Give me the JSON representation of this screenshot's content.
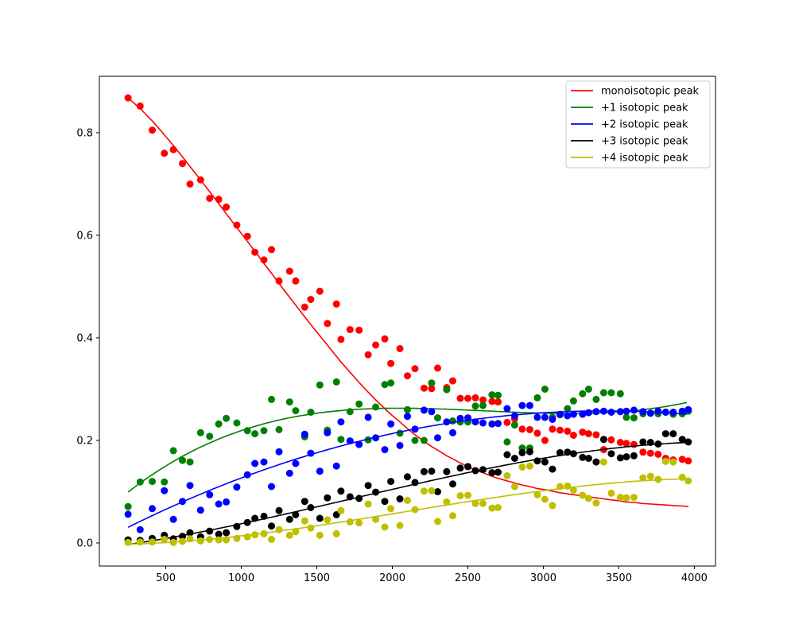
{
  "chart_data": {
    "type": "scatter",
    "title": "",
    "xlabel": "",
    "ylabel": "",
    "xlim": [
      60,
      4140
    ],
    "ylim": [
      -0.045,
      0.91
    ],
    "xticks": [
      500,
      1000,
      1500,
      2000,
      2500,
      3000,
      3500,
      4000
    ],
    "yticks": [
      0.0,
      0.2,
      0.4,
      0.6,
      0.8
    ],
    "xtick_labels": [
      "500",
      "1000",
      "1500",
      "2000",
      "2500",
      "3000",
      "3500",
      "4000"
    ],
    "ytick_labels": [
      "0.0",
      "0.2",
      "0.4",
      "0.6",
      "0.8"
    ],
    "grid": false,
    "legend_position": "top-right",
    "x": [
      250,
      330,
      410,
      490,
      550,
      610,
      660,
      730,
      790,
      850,
      900,
      970,
      1040,
      1090,
      1150,
      1200,
      1250,
      1320,
      1360,
      1420,
      1460,
      1520,
      1570,
      1630,
      1660,
      1720,
      1780,
      1840,
      1890,
      1950,
      1990,
      2050,
      2100,
      2150,
      2210,
      2260,
      2300,
      2360,
      2400,
      2450,
      2500,
      2550,
      2600,
      2660,
      2700,
      2760,
      2810,
      2860,
      2910,
      2960,
      3010,
      3060,
      3110,
      3160,
      3200,
      3260,
      3300,
      3350,
      3400,
      3450,
      3510,
      3550,
      3600,
      3660,
      3710,
      3760,
      3810,
      3860,
      3920,
      3960
    ],
    "series": [
      {
        "name": "monoisotopic peak",
        "color": "#ff0000",
        "fit": [
          0.868,
          0.847,
          0.823,
          0.796,
          0.775,
          0.753,
          0.734,
          0.708,
          0.685,
          0.662,
          0.642,
          0.615,
          0.588,
          0.569,
          0.545,
          0.526,
          0.506,
          0.479,
          0.464,
          0.441,
          0.426,
          0.404,
          0.386,
          0.364,
          0.353,
          0.333,
          0.313,
          0.294,
          0.279,
          0.262,
          0.251,
          0.236,
          0.223,
          0.211,
          0.198,
          0.188,
          0.181,
          0.17,
          0.164,
          0.156,
          0.149,
          0.142,
          0.137,
          0.13,
          0.126,
          0.121,
          0.117,
          0.113,
          0.11,
          0.106,
          0.104,
          0.101,
          0.098,
          0.096,
          0.094,
          0.092,
          0.09,
          0.088,
          0.086,
          0.084,
          0.082,
          0.08,
          0.079,
          0.077,
          0.076,
          0.075,
          0.074,
          0.073,
          0.072,
          0.071
        ],
        "values": [
          0.868,
          0.852,
          0.805,
          0.76,
          0.767,
          0.74,
          0.7,
          0.708,
          0.672,
          0.67,
          0.655,
          0.62,
          0.598,
          0.567,
          0.552,
          0.572,
          0.511,
          0.53,
          0.511,
          0.46,
          0.475,
          0.491,
          0.428,
          0.466,
          0.397,
          0.416,
          0.415,
          0.367,
          0.386,
          0.398,
          0.35,
          0.379,
          0.326,
          0.34,
          0.302,
          0.301,
          0.341,
          0.303,
          0.316,
          0.282,
          0.282,
          0.283,
          0.279,
          0.276,
          0.275,
          0.235,
          0.242,
          0.222,
          0.221,
          0.214,
          0.2,
          0.222,
          0.22,
          0.218,
          0.21,
          0.216,
          0.213,
          0.211,
          0.182,
          0.201,
          0.196,
          0.194,
          0.192,
          0.177,
          0.175,
          0.173,
          0.165,
          0.162,
          0.163,
          0.16
        ]
      },
      {
        "name": "+1 isotopic peak",
        "color": "#008000",
        "values": [
          0.071,
          0.119,
          0.12,
          0.119,
          0.18,
          0.161,
          0.158,
          0.215,
          0.208,
          0.232,
          0.243,
          0.234,
          0.219,
          0.213,
          0.219,
          0.28,
          0.221,
          0.275,
          0.258,
          0.207,
          0.255,
          0.308,
          0.22,
          0.314,
          0.202,
          0.256,
          0.271,
          0.201,
          0.265,
          0.309,
          0.312,
          0.214,
          0.26,
          0.2,
          0.2,
          0.312,
          0.244,
          0.299,
          0.238,
          0.236,
          0.236,
          0.267,
          0.268,
          0.289,
          0.288,
          0.197,
          0.23,
          0.185,
          0.185,
          0.283,
          0.3,
          0.245,
          0.25,
          0.262,
          0.277,
          0.291,
          0.3,
          0.28,
          0.293,
          0.293,
          0.291,
          0.245,
          0.244,
          0.252,
          0.253,
          0.252,
          0.255,
          0.251,
          0.252,
          0.257
        ]
      },
      {
        "name": "+2 isotopic peak",
        "color": "#0000ff",
        "values": [
          0.056,
          0.026,
          0.067,
          0.102,
          0.046,
          0.081,
          0.112,
          0.064,
          0.094,
          0.076,
          0.08,
          0.109,
          0.133,
          0.155,
          0.158,
          0.11,
          0.178,
          0.136,
          0.155,
          0.212,
          0.175,
          0.14,
          0.215,
          0.15,
          0.236,
          0.199,
          0.192,
          0.245,
          0.205,
          0.182,
          0.232,
          0.19,
          0.247,
          0.222,
          0.259,
          0.256,
          0.205,
          0.236,
          0.215,
          0.243,
          0.244,
          0.236,
          0.234,
          0.232,
          0.233,
          0.262,
          0.248,
          0.268,
          0.268,
          0.245,
          0.245,
          0.241,
          0.251,
          0.248,
          0.251,
          0.251,
          0.254,
          0.256,
          0.257,
          0.255,
          0.256,
          0.257,
          0.259,
          0.256,
          0.253,
          0.257,
          0.255,
          0.255,
          0.257,
          0.26
        ]
      },
      {
        "name": "+3 isotopic peak",
        "color": "#000000",
        "values": [
          0.006,
          0.005,
          0.009,
          0.015,
          0.008,
          0.013,
          0.02,
          0.012,
          0.023,
          0.017,
          0.02,
          0.032,
          0.04,
          0.048,
          0.052,
          0.033,
          0.063,
          0.046,
          0.055,
          0.081,
          0.069,
          0.048,
          0.088,
          0.055,
          0.101,
          0.09,
          0.087,
          0.112,
          0.099,
          0.081,
          0.12,
          0.086,
          0.129,
          0.118,
          0.139,
          0.14,
          0.1,
          0.139,
          0.115,
          0.146,
          0.149,
          0.141,
          0.143,
          0.137,
          0.138,
          0.172,
          0.165,
          0.176,
          0.178,
          0.16,
          0.158,
          0.144,
          0.176,
          0.177,
          0.174,
          0.167,
          0.165,
          0.158,
          0.202,
          0.174,
          0.166,
          0.168,
          0.17,
          0.197,
          0.196,
          0.193,
          0.213,
          0.213,
          0.202,
          0.197
        ]
      },
      {
        "name": "+4 isotopic peak",
        "color": "#bfbf00",
        "values": [
          0.001,
          0.002,
          0.002,
          0.007,
          0.001,
          0.003,
          0.008,
          0.004,
          0.007,
          0.006,
          0.006,
          0.009,
          0.012,
          0.016,
          0.018,
          0.007,
          0.026,
          0.015,
          0.022,
          0.043,
          0.029,
          0.015,
          0.045,
          0.018,
          0.063,
          0.041,
          0.039,
          0.076,
          0.046,
          0.031,
          0.067,
          0.034,
          0.083,
          0.065,
          0.101,
          0.102,
          0.042,
          0.08,
          0.053,
          0.092,
          0.093,
          0.077,
          0.077,
          0.068,
          0.069,
          0.131,
          0.11,
          0.148,
          0.15,
          0.094,
          0.085,
          0.073,
          0.11,
          0.111,
          0.103,
          0.093,
          0.087,
          0.078,
          0.158,
          0.097,
          0.089,
          0.088,
          0.089,
          0.127,
          0.13,
          0.124,
          0.159,
          0.158,
          0.128,
          0.121
        ]
      }
    ]
  }
}
